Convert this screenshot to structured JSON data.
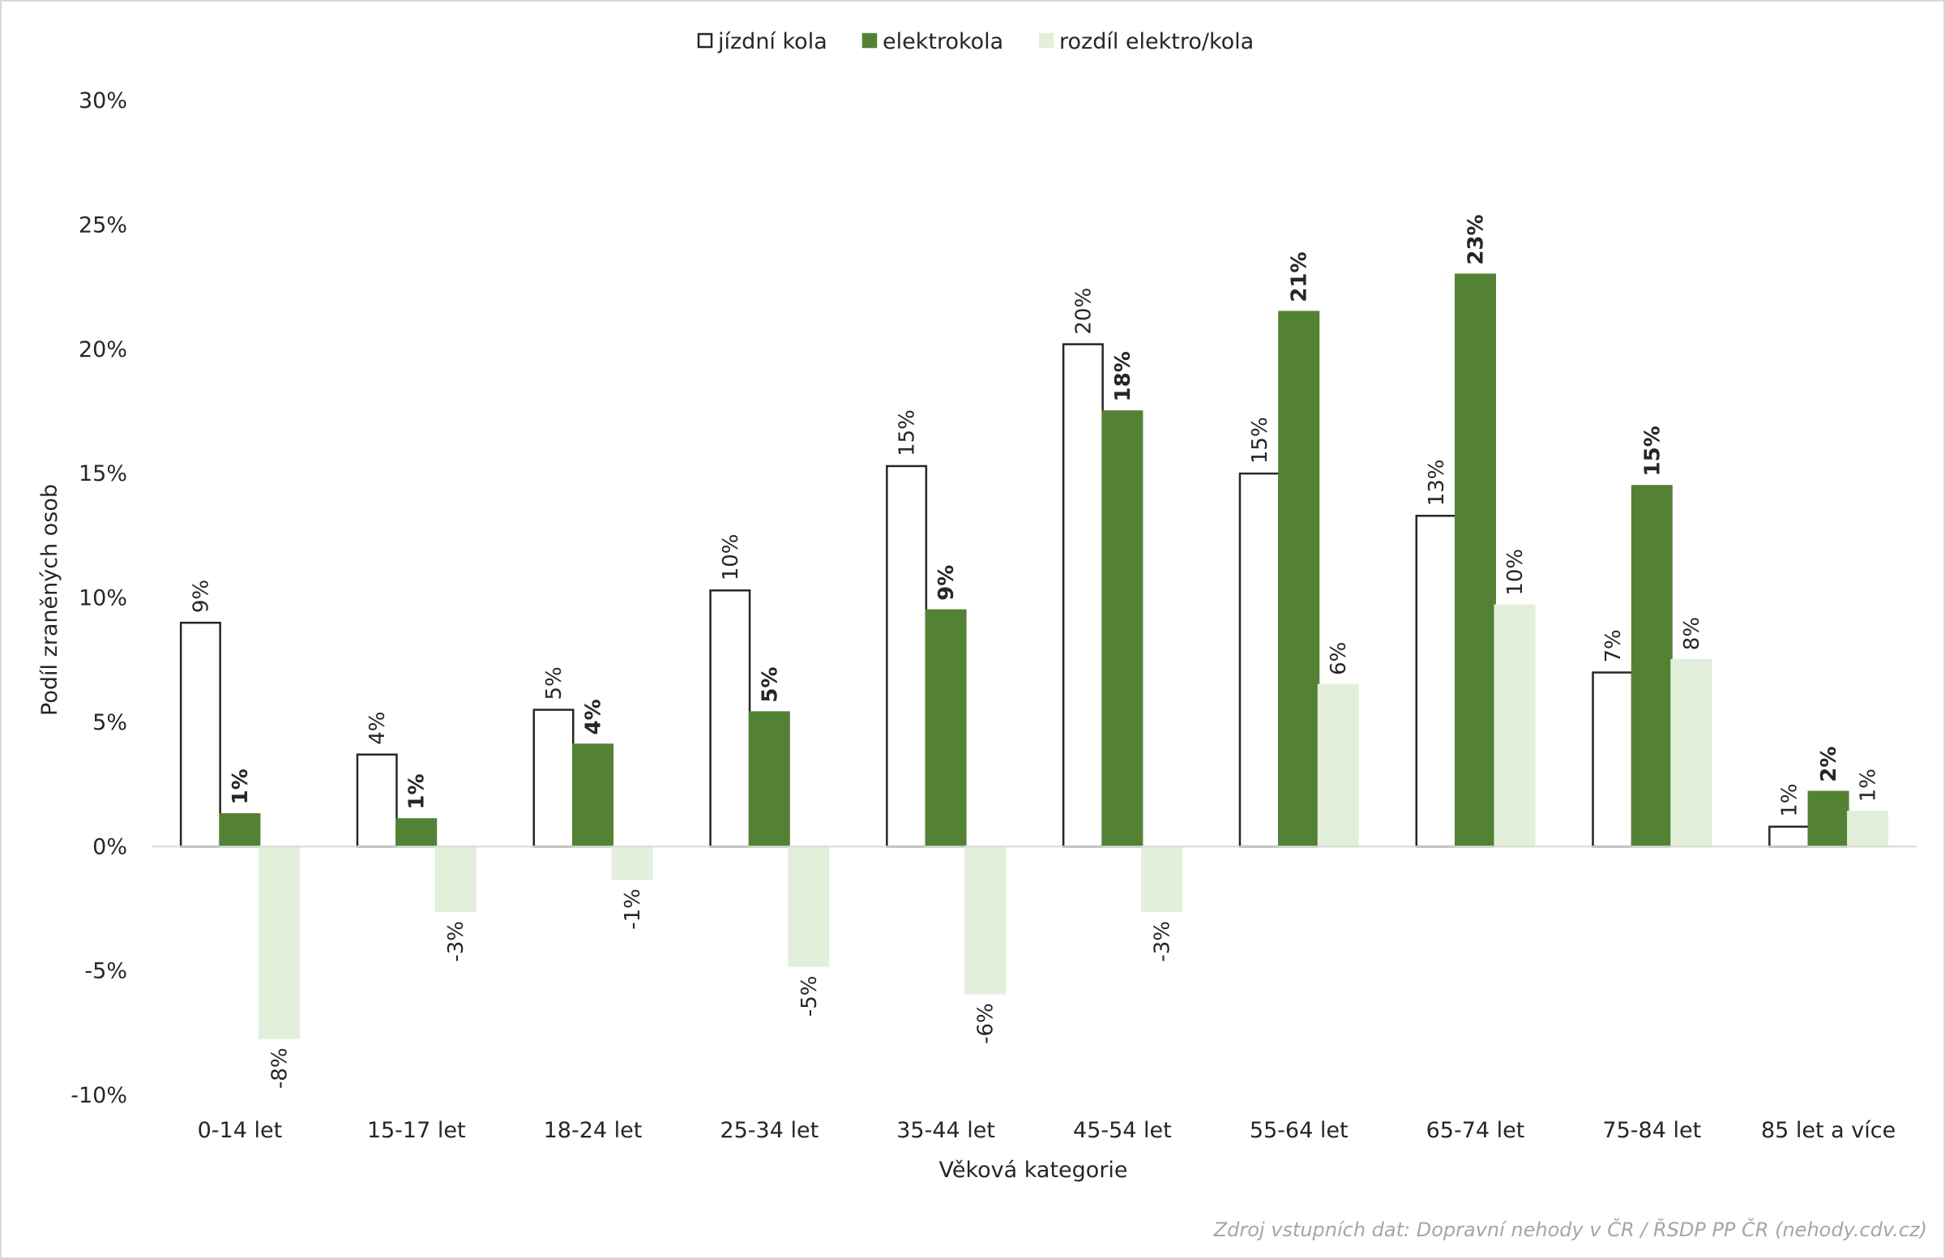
{
  "chart_data": {
    "type": "bar",
    "title": "",
    "xlabel": "Věková kategorie",
    "ylabel": "Podíl zraněných osob",
    "ylim": [
      -10,
      30
    ],
    "yticks": [
      -10,
      -5,
      0,
      5,
      10,
      15,
      20,
      25,
      30
    ],
    "ytick_labels": [
      "-10%",
      "-5%",
      "0%",
      "5%",
      "10%",
      "15%",
      "20%",
      "25%",
      "30%"
    ],
    "grid": false,
    "legend_position": "top",
    "categories": [
      "0-14 let",
      "15-17 let",
      "18-24 let",
      "25-34 let",
      "35-44 let",
      "45-54 let",
      "55-64 let",
      "65-74 let",
      "75-84 let",
      "85 let a více"
    ],
    "series": [
      {
        "name": "jízdní kola",
        "fill": "#ffffff",
        "stroke": "#262626",
        "values": [
          9.0,
          3.7,
          5.5,
          10.3,
          15.3,
          20.2,
          15.0,
          13.3,
          7.0,
          0.8
        ],
        "labels": [
          "9%",
          "4%",
          "5%",
          "10%",
          "15%",
          "20%",
          "15%",
          "13%",
          "7%",
          "1%"
        ],
        "bold": false
      },
      {
        "name": "elektrokola",
        "fill": "#548235",
        "stroke": "#548235",
        "values": [
          1.3,
          1.1,
          4.1,
          5.4,
          9.5,
          17.5,
          21.5,
          23.0,
          14.5,
          2.2
        ],
        "labels": [
          "1%",
          "1%",
          "4%",
          "5%",
          "9%",
          "18%",
          "21%",
          "23%",
          "15%",
          "2%"
        ],
        "bold": true
      },
      {
        "name": "rozdíl elektro/kola",
        "fill": "#e2efda",
        "stroke": "#e2efda",
        "values": [
          -7.7,
          -2.6,
          -1.3,
          -4.8,
          -5.9,
          -2.6,
          6.5,
          9.7,
          7.5,
          1.4
        ],
        "labels": [
          "-8%",
          "-3%",
          "-1%",
          "-5%",
          "-6%",
          "-3%",
          "6%",
          "10%",
          "8%",
          "1%"
        ],
        "bold": false
      }
    ]
  },
  "source": "Zdroj vstupních dat: Dopravní nehody v ČR / ŘSDP PP ČR (nehody.cdv.cz)"
}
